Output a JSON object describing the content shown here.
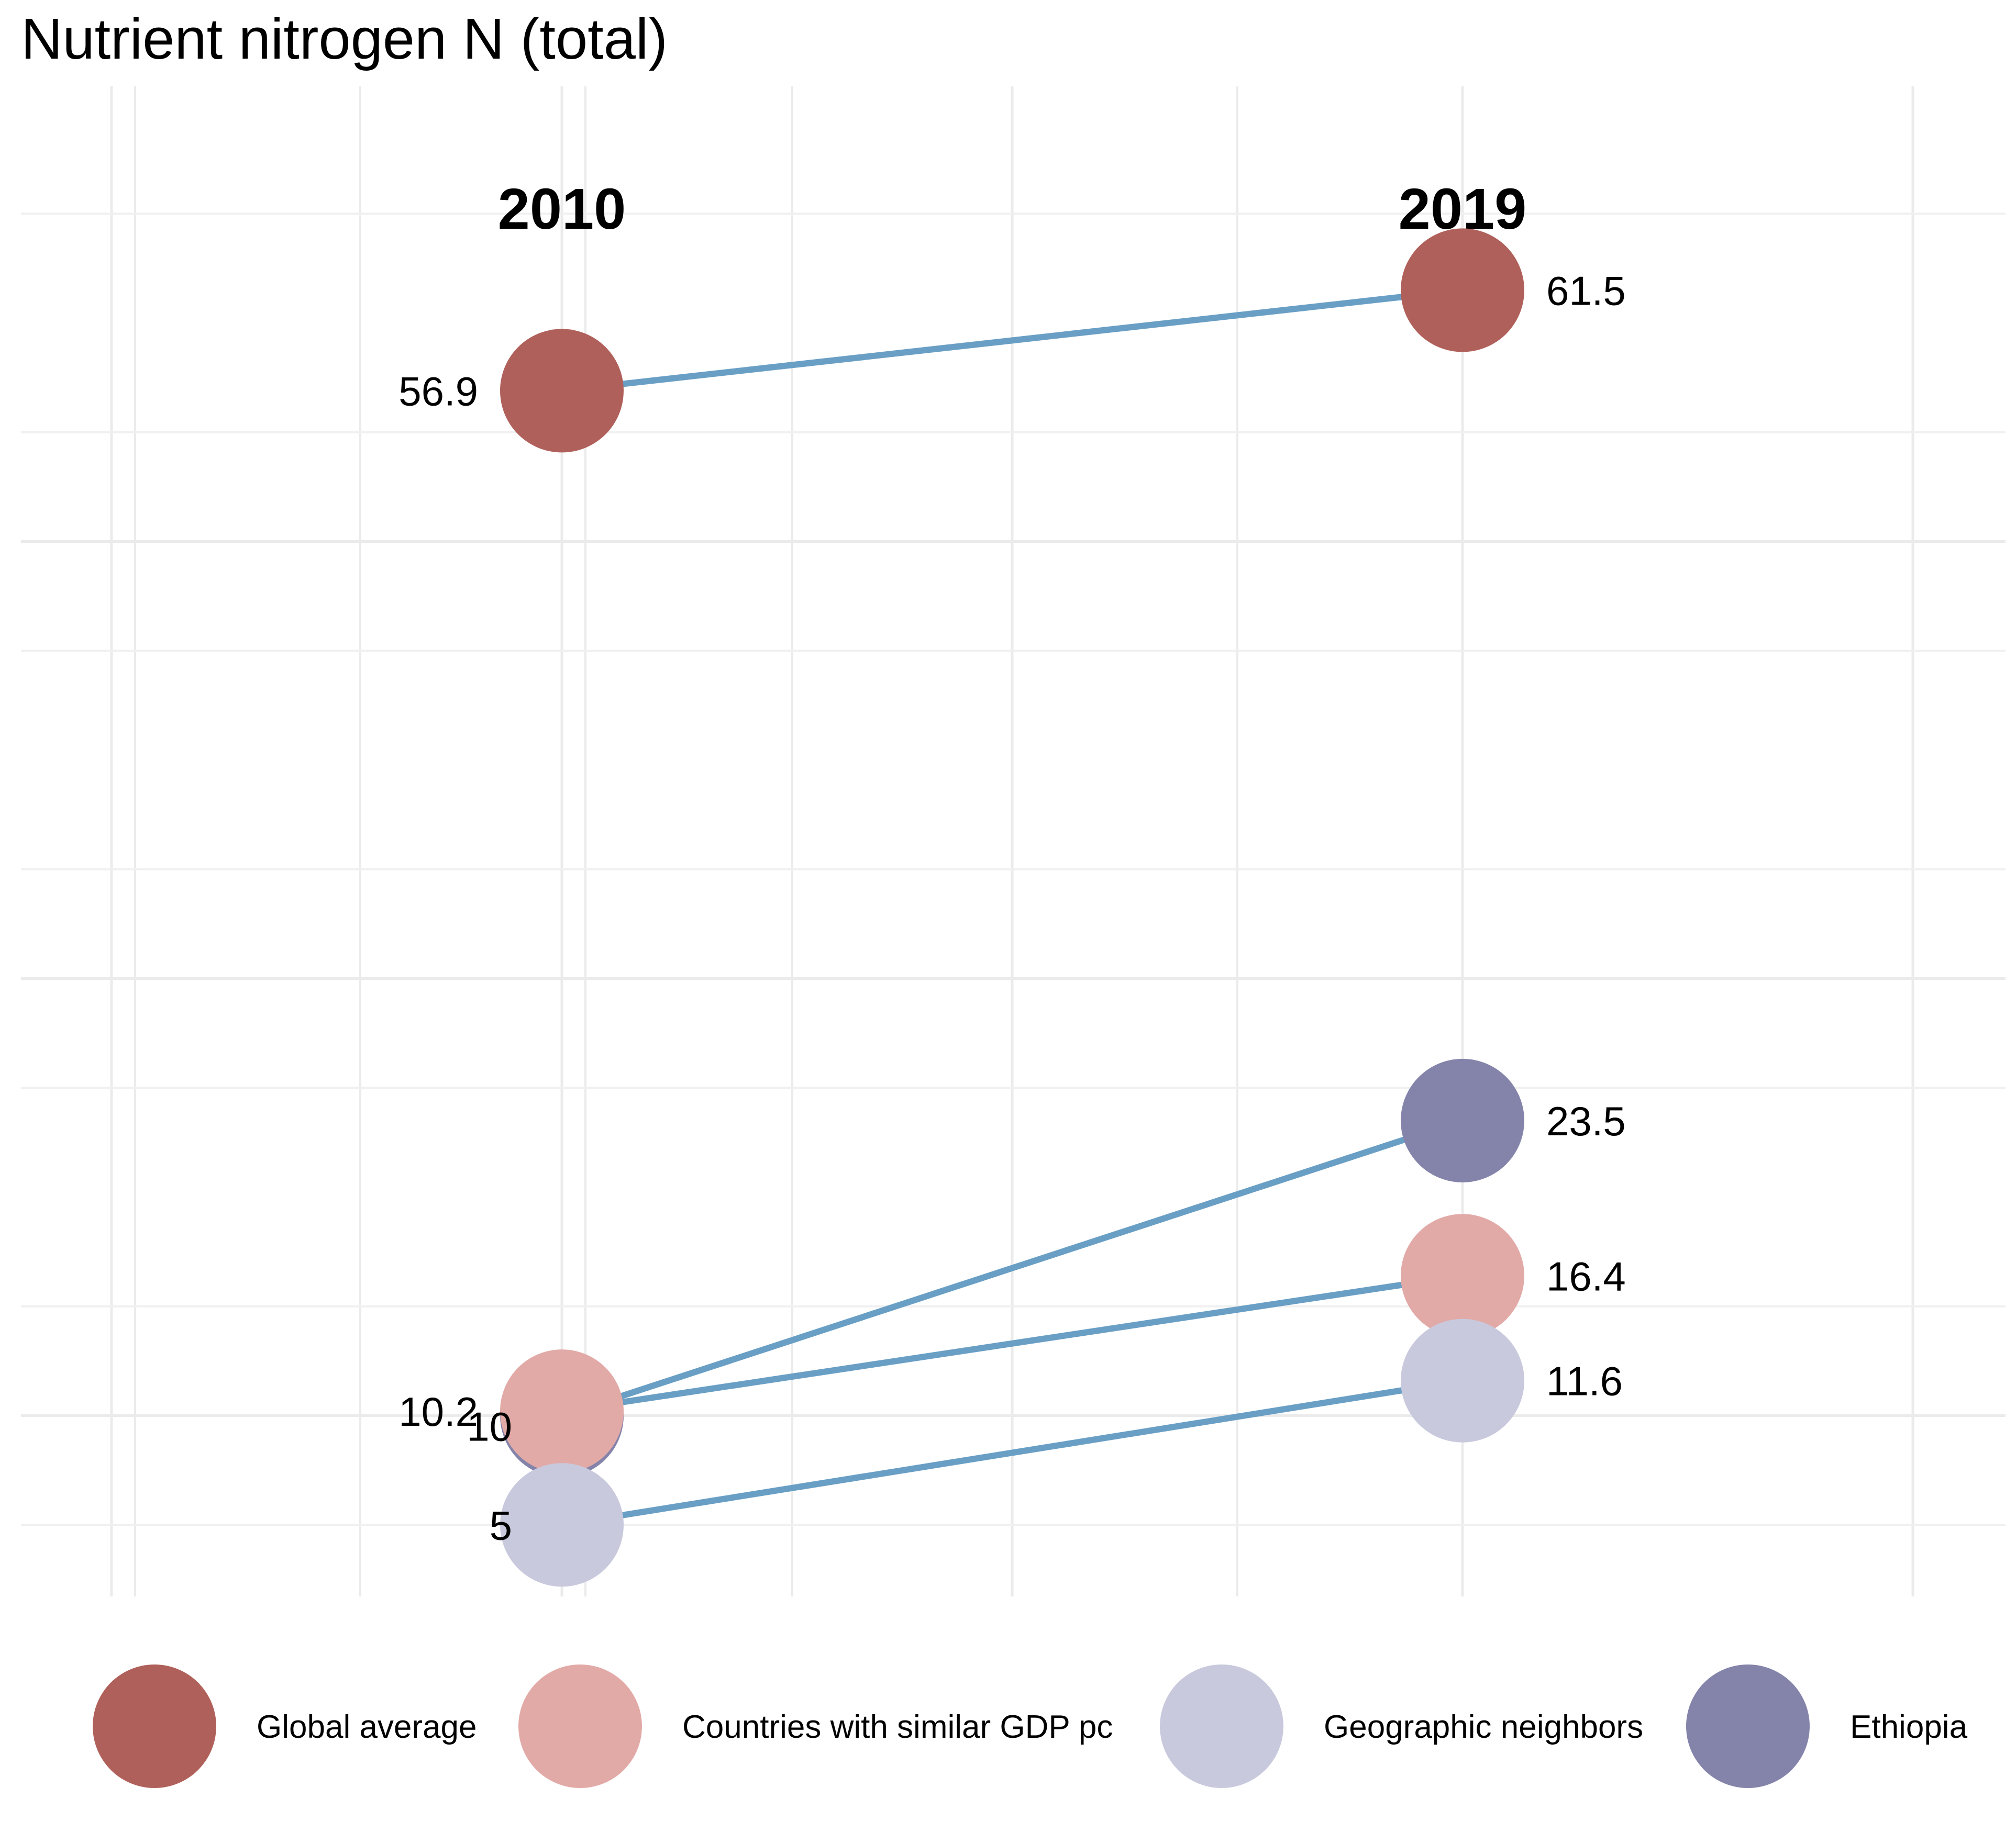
{
  "chart_data": {
    "type": "slope",
    "title": "Nutrient nitrogen N (total)",
    "x": [
      "2010",
      "2019"
    ],
    "ylim": [
      0,
      70
    ],
    "grid": true,
    "legend_position": "bottom",
    "line_color": "#6a9fc5",
    "series": [
      {
        "name": "Global average",
        "color": "#b0605a",
        "values": [
          56.9,
          61.5
        ],
        "labels": [
          "56.9",
          "61.5"
        ]
      },
      {
        "name": "Countries with similar GDP pc",
        "color": "#e2aaa7",
        "values": [
          10.2,
          16.4
        ],
        "labels": [
          "10.2",
          "16.4"
        ]
      },
      {
        "name": "Geographic neighbors",
        "color": "#c8c9dd",
        "values": [
          5,
          11.6
        ],
        "labels": [
          "5",
          "11.6"
        ]
      },
      {
        "name": "Ethiopia",
        "color": "#8483aa",
        "values": [
          10,
          23.5
        ],
        "labels": [
          "10",
          "23.5"
        ]
      }
    ]
  }
}
